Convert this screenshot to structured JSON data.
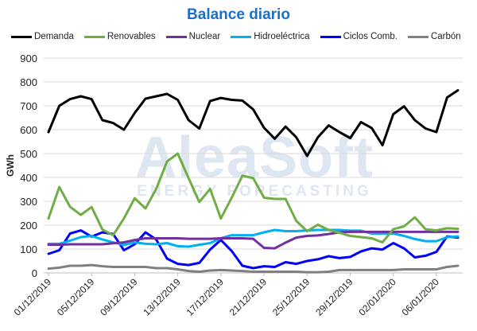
{
  "chart_data": {
    "type": "line",
    "title": "Balance diario",
    "ylabel": "GWh",
    "xlabel": "",
    "ylim": [
      0,
      900
    ],
    "yticks": [
      0,
      100,
      200,
      300,
      400,
      500,
      600,
      700,
      800,
      900
    ],
    "grid": true,
    "legend_position": "top",
    "x": [
      "01/12/2019",
      "02/12/2019",
      "03/12/2019",
      "04/12/2019",
      "05/12/2019",
      "06/12/2019",
      "07/12/2019",
      "08/12/2019",
      "09/12/2019",
      "10/12/2019",
      "11/12/2019",
      "12/12/2019",
      "13/12/2019",
      "14/12/2019",
      "15/12/2019",
      "16/12/2019",
      "17/12/2019",
      "18/12/2019",
      "19/12/2019",
      "20/12/2019",
      "21/12/2019",
      "22/12/2019",
      "23/12/2019",
      "24/12/2019",
      "25/12/2019",
      "26/12/2019",
      "27/12/2019",
      "28/12/2019",
      "29/12/2019",
      "30/12/2019",
      "31/12/2019",
      "01/01/2020",
      "02/01/2020",
      "03/01/2020",
      "04/01/2020",
      "05/01/2020",
      "06/01/2020",
      "07/01/2020",
      "08/01/2020"
    ],
    "xtick_labels": [
      "01/12/2019",
      "05/12/2019",
      "09/12/2019",
      "13/12/2019",
      "17/12/2019",
      "21/12/2019",
      "25/12/2019",
      "29/12/2019",
      "02/01/2020",
      "06/01/2020"
    ],
    "series": [
      {
        "name": "Demanda",
        "color": "#000000",
        "values": [
          590,
          700,
          728,
          740,
          728,
          640,
          628,
          600,
          670,
          730,
          740,
          750,
          725,
          640,
          605,
          720,
          733,
          725,
          722,
          685,
          608,
          562,
          613,
          568,
          490,
          568,
          618,
          590,
          565,
          632,
          607,
          535,
          665,
          698,
          640,
          605,
          590,
          735,
          765
        ]
      },
      {
        "name": "Renovables",
        "color": "#70ad47",
        "values": [
          228,
          360,
          277,
          243,
          276,
          182,
          158,
          228,
          313,
          270,
          352,
          467,
          500,
          397,
          297,
          352,
          228,
          315,
          407,
          397,
          315,
          310,
          310,
          218,
          175,
          202,
          180,
          168,
          155,
          150,
          145,
          128,
          183,
          195,
          233,
          183,
          178,
          187,
          185
        ]
      },
      {
        "name": "Nuclear",
        "color": "#7030a0",
        "values": [
          118,
          118,
          120,
          120,
          120,
          120,
          124,
          128,
          138,
          145,
          145,
          145,
          145,
          143,
          143,
          143,
          145,
          145,
          145,
          143,
          105,
          103,
          127,
          148,
          155,
          157,
          163,
          170,
          172,
          172,
          172,
          172,
          172,
          172,
          172,
          172,
          172,
          172,
          172
        ]
      },
      {
        "name": "Hidroeléctrica",
        "color": "#00b0f0",
        "values": [
          122,
          122,
          135,
          150,
          155,
          140,
          128,
          117,
          128,
          122,
          120,
          125,
          112,
          110,
          118,
          125,
          145,
          158,
          158,
          158,
          170,
          180,
          175,
          175,
          178,
          180,
          180,
          180,
          177,
          177,
          165,
          165,
          165,
          155,
          142,
          133,
          133,
          150,
          153
        ]
      },
      {
        "name": "Ciclos Comb.",
        "color": "#0000ff",
        "values": [
          80,
          95,
          165,
          178,
          152,
          170,
          163,
          95,
          120,
          170,
          140,
          60,
          38,
          33,
          42,
          98,
          138,
          92,
          30,
          20,
          28,
          25,
          45,
          38,
          50,
          57,
          70,
          62,
          67,
          90,
          103,
          98,
          125,
          103,
          65,
          72,
          88,
          153,
          148
        ]
      },
      {
        "name": "Carbón",
        "color": "#808080",
        "values": [
          18,
          22,
          30,
          30,
          33,
          28,
          25,
          25,
          25,
          25,
          20,
          20,
          15,
          8,
          5,
          10,
          12,
          10,
          8,
          5,
          5,
          5,
          5,
          5,
          3,
          3,
          5,
          12,
          12,
          12,
          12,
          12,
          12,
          15,
          15,
          15,
          15,
          25,
          30
        ]
      }
    ]
  },
  "watermark": {
    "brand": "AleaSoft",
    "sub": "ENERGY FORECASTING"
  }
}
